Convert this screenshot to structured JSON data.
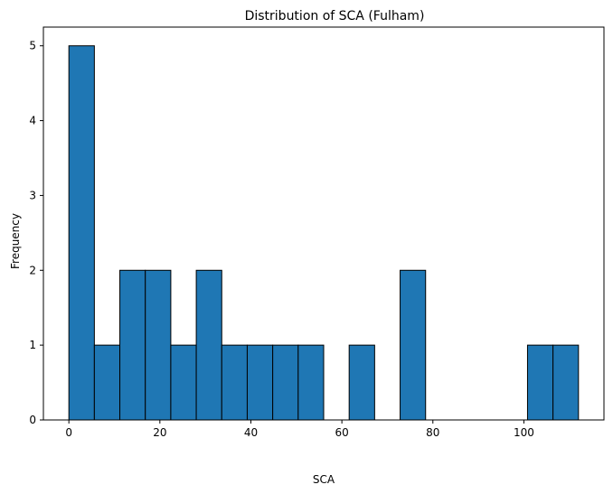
{
  "chart_data": {
    "type": "bar",
    "title": "Distribution of SCA (Fulham)",
    "xlabel": "SCA",
    "ylabel": "Frequency",
    "bin_edges": [
      0,
      5.6,
      11.2,
      16.8,
      22.4,
      28,
      33.6,
      39.2,
      44.8,
      50.4,
      56,
      61.6,
      67.2,
      72.8,
      78.4,
      84,
      89.6,
      95.2,
      100.8,
      106.4,
      112
    ],
    "values": [
      5,
      1,
      2,
      2,
      1,
      2,
      1,
      1,
      1,
      1,
      0,
      1,
      0,
      2,
      0,
      0,
      0,
      0,
      1,
      1
    ],
    "xlim": [
      -5.6,
      117.6
    ],
    "ylim": [
      0,
      5.25
    ],
    "xticks": [
      0,
      20,
      40,
      60,
      80,
      100
    ],
    "yticks": [
      0,
      1,
      2,
      3,
      4,
      5
    ],
    "bar_color": "#1f77b4",
    "edge_color": "#000000",
    "grid": false
  }
}
